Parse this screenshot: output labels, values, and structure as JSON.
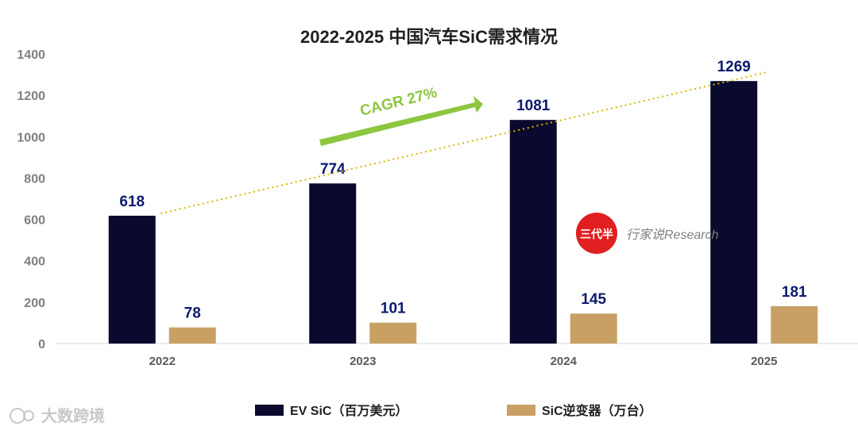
{
  "chart_data": {
    "type": "bar",
    "title": "2022-2025 中国汽车SiC需求情况",
    "categories": [
      "2022",
      "2023",
      "2024",
      "2025"
    ],
    "series": [
      {
        "name": "EV SiC（百万美元）",
        "values": [
          618,
          774,
          1081,
          1269
        ],
        "color": "#0a0a2e"
      },
      {
        "name": "SiC逆变器（万台）",
        "values": [
          78,
          101,
          145,
          181
        ],
        "color": "#c8a064"
      }
    ],
    "ylim": [
      0,
      1400
    ],
    "yticks": [
      0,
      200,
      400,
      600,
      800,
      1000,
      1200,
      1400
    ],
    "trendline_series": 0,
    "trend_color": "#d4b800",
    "annotation": {
      "text": "CAGR 27%",
      "color": "#8dc63f"
    },
    "legend_position": "bottom"
  },
  "watermark": {
    "logo_text": "三代半",
    "text": "行家说Research",
    "logo_color": "#e02020"
  },
  "footer_watermark": {
    "text": "大数跨境"
  }
}
